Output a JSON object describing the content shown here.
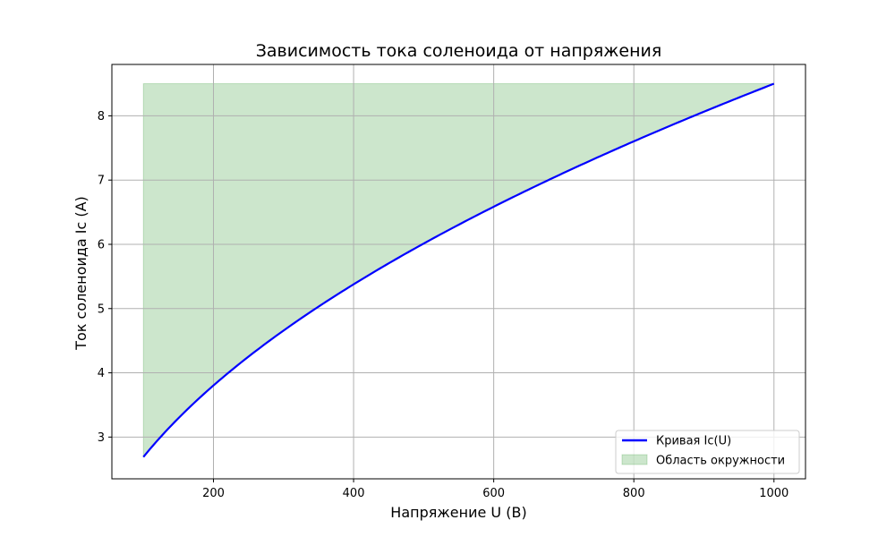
{
  "chart_data": {
    "type": "line",
    "title": "Зависимость тока соленоида от напряжения",
    "xlabel": "Напряжение U (В)",
    "ylabel": "Ток соленоида Ic (A)",
    "xlim": [
      55,
      1045
    ],
    "ylim": [
      2.35,
      8.8
    ],
    "xticks": [
      200,
      400,
      600,
      800,
      1000
    ],
    "yticks": [
      3,
      4,
      5,
      6,
      7,
      8
    ],
    "grid": true,
    "legend_position": "lower-right",
    "series": [
      {
        "name": "Кривая Ic(U)",
        "color": "#0000ff",
        "x": [
          100,
          150,
          200,
          250,
          300,
          350,
          400,
          450,
          500,
          550,
          600,
          650,
          700,
          750,
          800,
          850,
          900,
          950,
          1000
        ],
        "y": [
          2.69,
          3.29,
          3.8,
          4.25,
          4.66,
          5.03,
          5.38,
          5.7,
          6.01,
          6.3,
          6.58,
          6.85,
          7.11,
          7.36,
          7.6,
          7.84,
          8.07,
          8.29,
          8.5
        ]
      }
    ],
    "fill": {
      "name": "Область окружности",
      "color": "#008000",
      "opacity": 0.2,
      "upper": 8.5
    }
  }
}
